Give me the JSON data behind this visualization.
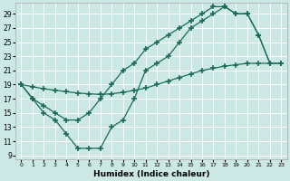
{
  "bg_color": "#cce8e5",
  "line_color": "#1a6b5a",
  "xlabel": "Humidex (Indice chaleur)",
  "xlim": [
    0,
    23
  ],
  "ylim": [
    9,
    30
  ],
  "yticks": [
    9,
    11,
    13,
    15,
    17,
    19,
    21,
    23,
    25,
    27,
    29
  ],
  "xticks": [
    0,
    1,
    2,
    3,
    4,
    5,
    6,
    7,
    8,
    9,
    10,
    11,
    12,
    13,
    14,
    15,
    16,
    17,
    18,
    19,
    20,
    21,
    22,
    23
  ],
  "curve1_x": [
    0,
    1,
    2,
    3,
    4,
    5,
    6,
    7,
    8,
    9,
    10,
    11,
    12,
    13,
    14,
    15,
    16,
    17,
    18,
    19,
    20,
    21,
    22
  ],
  "curve1_y": [
    19,
    17,
    16,
    15,
    14,
    14,
    15,
    17,
    19,
    21,
    22,
    24,
    25,
    26,
    27,
    28,
    29,
    30,
    30,
    29,
    29,
    26,
    22
  ],
  "curve2_x": [
    0,
    1,
    2,
    3,
    4,
    5,
    6,
    7,
    8,
    9,
    10,
    11,
    12,
    13,
    14,
    15,
    16,
    17,
    18,
    19,
    20,
    21,
    22,
    23
  ],
  "curve2_y": [
    19,
    17,
    15,
    14,
    12,
    10,
    10,
    10,
    13,
    14,
    17,
    21,
    22,
    23,
    25,
    27,
    28,
    29,
    30,
    29,
    29,
    26,
    22,
    22
  ],
  "curve3_x": [
    0,
    1,
    2,
    3,
    4,
    5,
    6,
    7,
    8,
    9,
    10,
    11,
    12,
    13,
    14,
    15,
    16,
    17,
    18,
    19,
    20,
    21,
    22,
    23
  ],
  "curve3_y": [
    19,
    18.7,
    18.4,
    18.2,
    18.0,
    17.8,
    17.7,
    17.6,
    17.7,
    17.9,
    18.2,
    18.5,
    19.0,
    19.5,
    20.0,
    20.5,
    21.0,
    21.3,
    21.6,
    21.8,
    22.0,
    22.0,
    22.0,
    22.0
  ]
}
